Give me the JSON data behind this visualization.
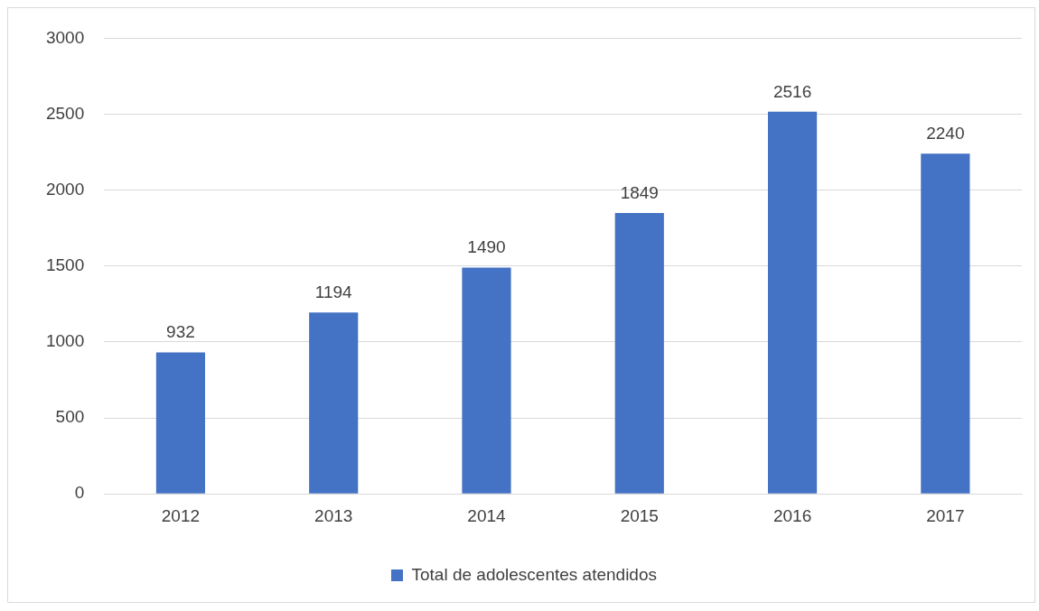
{
  "chart_data": {
    "type": "bar",
    "categories": [
      "2012",
      "2013",
      "2014",
      "2015",
      "2016",
      "2017"
    ],
    "series": [
      {
        "name": "Total de adolescentes atendidos",
        "color": "#4472c4",
        "values": [
          932,
          1194,
          1490,
          1849,
          2516,
          2240
        ]
      }
    ],
    "ylim": [
      0,
      3000
    ],
    "yticks": [
      0,
      500,
      1000,
      1500,
      2000,
      2500,
      3000
    ],
    "grid": "y",
    "legend": "bottom",
    "data_labels": true
  }
}
